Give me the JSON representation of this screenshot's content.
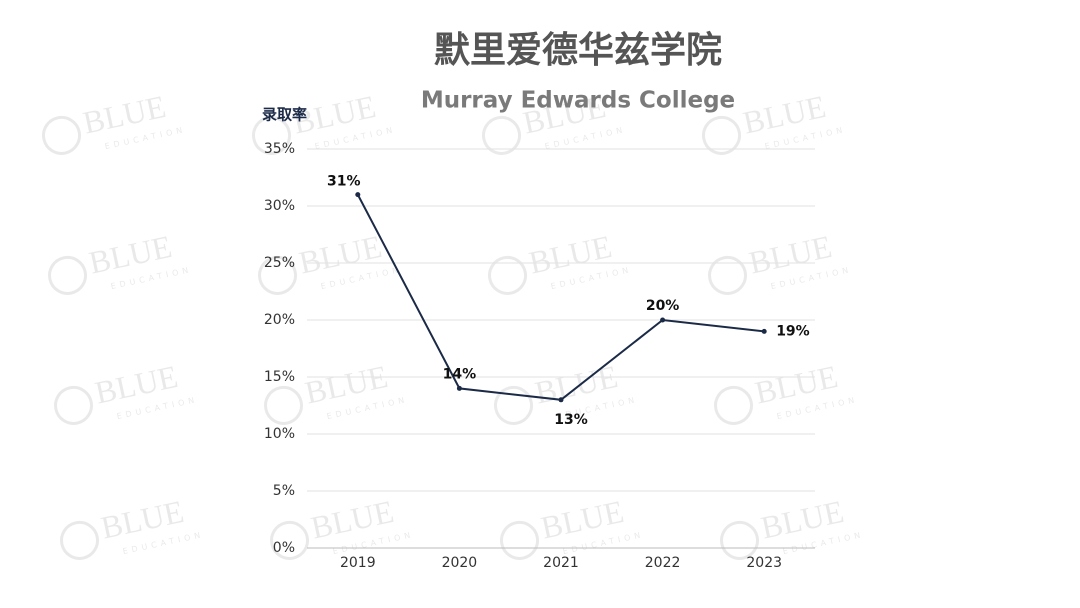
{
  "chart_data": {
    "type": "line",
    "title": "默里爱德华兹学院",
    "subtitle": "Murray Edwards College",
    "y_label": "录取率",
    "categories": [
      "2019",
      "2020",
      "2021",
      "2022",
      "2023"
    ],
    "series": [
      {
        "name": "录取率",
        "color": "#1b2a47",
        "values": [
          31,
          14,
          13,
          20,
          19
        ],
        "value_labels": [
          "31%",
          "14%",
          "13%",
          "20%",
          "19%"
        ]
      }
    ],
    "ylim": [
      0,
      35
    ],
    "yticks": [
      {
        "value": 0,
        "label": "0%"
      },
      {
        "value": 5,
        "label": "5%"
      },
      {
        "value": 10,
        "label": "10%"
      },
      {
        "value": 15,
        "label": "15%"
      },
      {
        "value": 20,
        "label": "20%"
      },
      {
        "value": 25,
        "label": "25%"
      },
      {
        "value": 30,
        "label": "30%"
      },
      {
        "value": 35,
        "label": "35%"
      }
    ],
    "grid": true,
    "watermark": {
      "text": "BLUE",
      "subtext": "EDUCATION"
    }
  }
}
